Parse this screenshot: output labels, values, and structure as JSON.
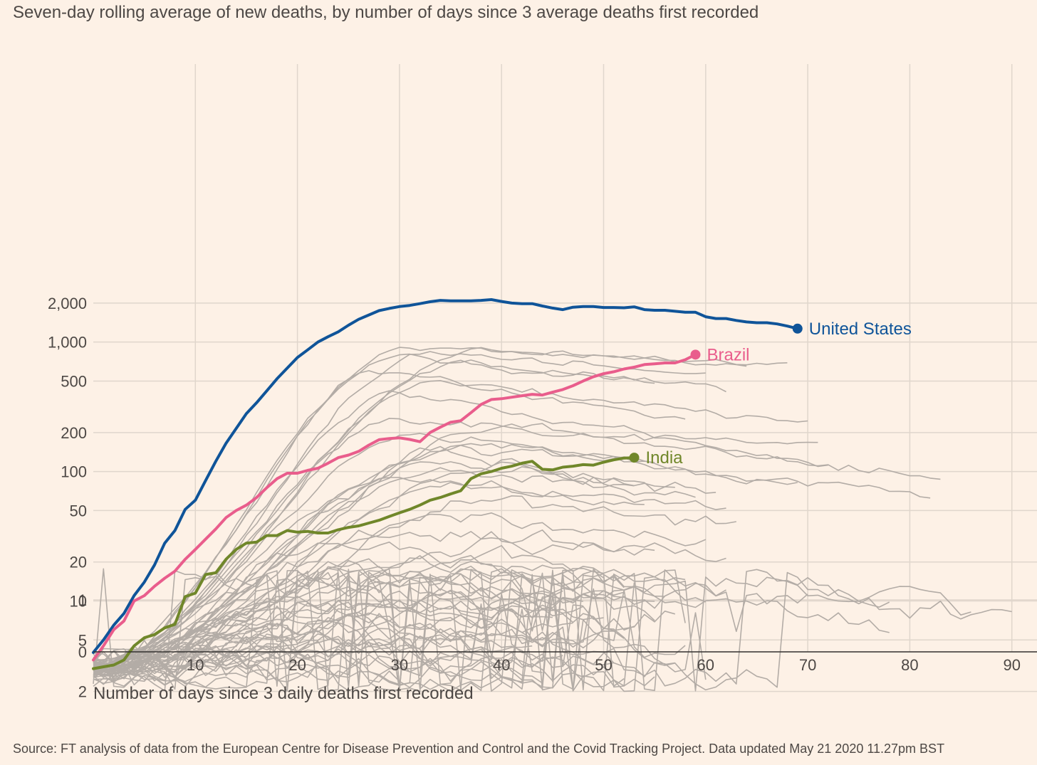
{
  "subtitle": "Seven-day rolling average of new deaths, by number of days since 3 average deaths first recorded",
  "source": "Source: FT analysis of data from the European Centre for Disease Prevention and Control and the Covid Tracking Project. Data updated May 21 2020 11.27pm BST",
  "chart_data": {
    "type": "line",
    "title": "",
    "xlabel": "Number of days since 3 daily deaths first recorded",
    "ylabel": "",
    "y_scale": "log",
    "xlim": [
      0,
      92
    ],
    "x_ticks": [
      10,
      20,
      30,
      40,
      50,
      60,
      70,
      80,
      90
    ],
    "x_tick_labels": [
      "10",
      "20",
      "30",
      "40",
      "50",
      "60",
      "70",
      "80",
      "90"
    ],
    "y_ticks": [
      0,
      1,
      2,
      5,
      10,
      20,
      50,
      100,
      200,
      500,
      1000,
      2000
    ],
    "y_tick_labels": [
      "0",
      "1",
      "2",
      "5",
      "10",
      "20",
      "50",
      "100",
      "200",
      "500",
      "1,000",
      "2,000"
    ],
    "grid": true,
    "highlighted_series": [
      {
        "name": "United States",
        "color": "#0f5499",
        "x": [
          0,
          1,
          2,
          3,
          4,
          5,
          6,
          7,
          8,
          9,
          10,
          11,
          12,
          13,
          14,
          15,
          16,
          17,
          18,
          19,
          20,
          21,
          22,
          23,
          24,
          25,
          26,
          27,
          28,
          29,
          30,
          31,
          32,
          33,
          34,
          35,
          36,
          37,
          38,
          39,
          40,
          41,
          42,
          43,
          44,
          45,
          46,
          47,
          48,
          49,
          50,
          51,
          52,
          53,
          54,
          55,
          56,
          57,
          58,
          59,
          60,
          61,
          62,
          63,
          64,
          65,
          66,
          67,
          68,
          69
        ],
        "y": [
          4,
          5,
          6.5,
          8,
          11,
          14,
          19,
          28,
          35,
          51,
          60,
          85,
          120,
          165,
          215,
          280,
          340,
          420,
          520,
          630,
          760,
          870,
          1000,
          1100,
          1200,
          1350,
          1500,
          1620,
          1750,
          1820,
          1880,
          1920,
          1980,
          2050,
          2100,
          2080,
          2080,
          2080,
          2100,
          2130,
          2060,
          2000,
          1980,
          1980,
          1900,
          1830,
          1780,
          1860,
          1880,
          1880,
          1850,
          1850,
          1840,
          1870,
          1780,
          1760,
          1760,
          1730,
          1700,
          1700,
          1570,
          1520,
          1520,
          1470,
          1430,
          1410,
          1410,
          1380,
          1330,
          1270
        ]
      },
      {
        "name": "Brazil",
        "color": "#e95d8c",
        "x": [
          0,
          1,
          2,
          3,
          4,
          5,
          6,
          7,
          8,
          9,
          10,
          11,
          12,
          13,
          14,
          15,
          16,
          17,
          18,
          19,
          20,
          21,
          22,
          23,
          24,
          25,
          26,
          27,
          28,
          29,
          30,
          31,
          32,
          33,
          34,
          35,
          36,
          37,
          38,
          39,
          40,
          41,
          42,
          43,
          44,
          45,
          46,
          47,
          48,
          49,
          50,
          51,
          52,
          53,
          54,
          55,
          56,
          57,
          58,
          59
        ],
        "y": [
          3.5,
          4.5,
          6,
          7,
          10,
          11,
          13,
          15,
          17,
          21,
          25,
          30,
          36,
          44,
          50,
          55,
          63,
          75,
          88,
          97,
          97,
          102,
          106,
          116,
          128,
          134,
          143,
          160,
          176,
          180,
          182,
          177,
          170,
          200,
          220,
          240,
          247,
          285,
          330,
          360,
          365,
          375,
          385,
          395,
          390,
          410,
          430,
          460,
          500,
          540,
          570,
          590,
          620,
          640,
          670,
          680,
          690,
          690,
          730,
          800
        ]
      },
      {
        "name": "India",
        "color": "#70872a",
        "x": [
          0,
          1,
          2,
          3,
          4,
          5,
          6,
          7,
          8,
          9,
          10,
          11,
          12,
          13,
          14,
          15,
          16,
          17,
          18,
          19,
          20,
          21,
          22,
          23,
          24,
          25,
          26,
          27,
          28,
          29,
          30,
          31,
          32,
          33,
          34,
          35,
          36,
          37,
          38,
          39,
          40,
          41,
          42,
          43,
          44,
          45,
          46,
          47,
          48,
          49,
          50,
          51,
          52,
          53
        ],
        "y": [
          3,
          3.1,
          3.2,
          3.5,
          4.5,
          5.2,
          5.5,
          6.2,
          6.6,
          10.8,
          11.5,
          16,
          16.5,
          21,
          25,
          28,
          28.5,
          32,
          32,
          35,
          34,
          34.5,
          33.5,
          33.5,
          35.5,
          37,
          38,
          40,
          42,
          45,
          48,
          51,
          55,
          60,
          63,
          67,
          71,
          88,
          96,
          100,
          106,
          110,
          116,
          120,
          104,
          103,
          108,
          110,
          113,
          112,
          118,
          123,
          127,
          128
        ]
      }
    ],
    "end_labels": [
      "United States",
      "Brazil",
      "India"
    ],
    "background_series_count": 60
  }
}
